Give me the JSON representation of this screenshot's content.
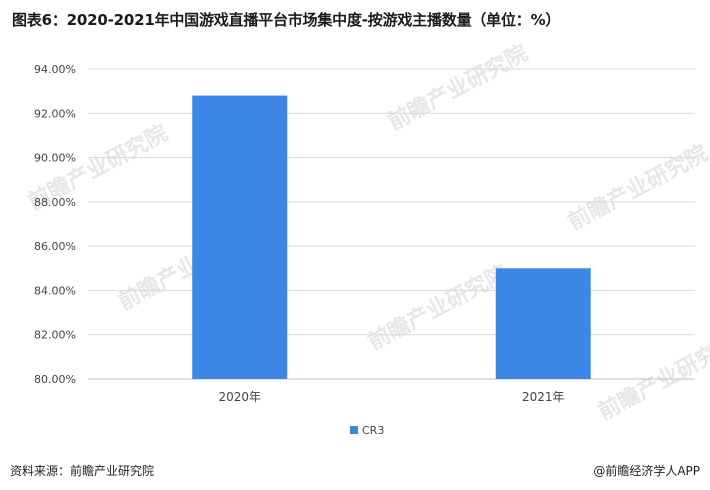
{
  "title": "图表6：2020-2021年中国游戏直播平台市场集中度-按游戏主播数量（单位：%）",
  "watermark": "前瞻产业研究院",
  "footer": {
    "source": "资料来源：前瞻产业研究院",
    "brand": "@前瞻经济学人APP"
  },
  "colors": {
    "bar": "#3b86e6",
    "grid": "#d9d9d9",
    "axis_text": "#444444"
  },
  "chart_data": {
    "type": "bar",
    "categories": [
      "2020年",
      "2021年"
    ],
    "series": [
      {
        "name": "CR3",
        "values": [
          92.8,
          85.0
        ]
      }
    ],
    "ylim": [
      80,
      94
    ],
    "yticks": [
      "80.00%",
      "82.00%",
      "84.00%",
      "86.00%",
      "88.00%",
      "90.00%",
      "92.00%",
      "94.00%"
    ],
    "ytick_values": [
      80,
      82,
      84,
      86,
      88,
      90,
      92,
      94
    ],
    "legend": "bottom-center",
    "grid": true
  }
}
